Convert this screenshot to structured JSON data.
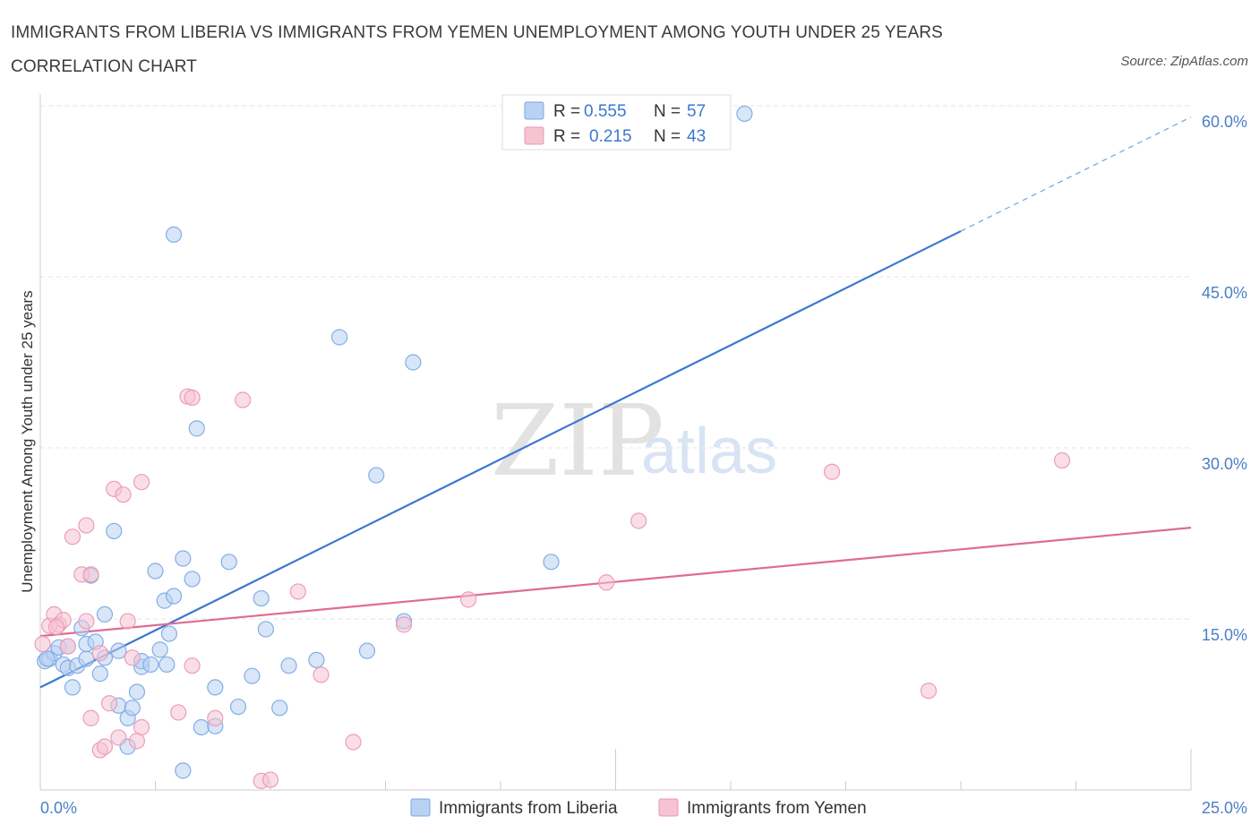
{
  "title": "IMMIGRANTS FROM LIBERIA VS IMMIGRANTS FROM YEMEN UNEMPLOYMENT AMONG YOUTH UNDER 25 YEARS CORRELATION CHART",
  "source": "Source: ZipAtlas.com",
  "watermark": {
    "zip": "ZIP",
    "atlas": "atlas"
  },
  "colors": {
    "liberia": "#3b78d0",
    "liberia_fill": "#b9d2f3",
    "yemen": "#e06b93",
    "yemen_fill": "#f6c3d3"
  },
  "legend": {
    "rows": [
      {
        "r_label": "R =",
        "r_value": "0.555",
        "n_label": "N =",
        "n_value": "57"
      },
      {
        "r_label": "R =",
        "r_value": "0.215",
        "n_label": "N =",
        "n_value": "43"
      }
    ]
  },
  "chart_data": {
    "type": "scatter",
    "xlabel": "",
    "ylabel": "Unemployment Among Youth under 25 years",
    "xlim": [
      0,
      25
    ],
    "ylim": [
      0,
      60
    ],
    "x_tick_labels": [
      "0.0%",
      "25.0%"
    ],
    "y_ticks": [
      15,
      30,
      45,
      60
    ],
    "y_tick_labels": [
      "15.0%",
      "30.0%",
      "45.0%",
      "60.0%"
    ],
    "grid": true,
    "legend_position": "bottom-center",
    "series": [
      {
        "name": "Immigrants from Liberia",
        "color": "#3b78d0",
        "R": 0.555,
        "N": 57,
        "trend": {
          "x": [
            0.0,
            20.0
          ],
          "y": [
            9.0,
            49.0
          ],
          "dashed_to": [
            25.0,
            59.0
          ]
        },
        "points": [
          [
            0.1,
            11.3
          ],
          [
            0.2,
            11.5
          ],
          [
            0.3,
            12.0
          ],
          [
            0.4,
            12.5
          ],
          [
            0.5,
            11.0
          ],
          [
            0.6,
            12.6
          ],
          [
            0.6,
            10.7
          ],
          [
            0.7,
            9.0
          ],
          [
            0.8,
            10.9
          ],
          [
            0.9,
            14.2
          ],
          [
            1.0,
            11.5
          ],
          [
            1.0,
            12.8
          ],
          [
            1.1,
            18.8
          ],
          [
            1.2,
            13.0
          ],
          [
            1.3,
            10.2
          ],
          [
            1.4,
            15.4
          ],
          [
            1.4,
            11.6
          ],
          [
            1.6,
            22.7
          ],
          [
            1.7,
            12.2
          ],
          [
            1.7,
            7.4
          ],
          [
            1.9,
            3.8
          ],
          [
            1.9,
            6.3
          ],
          [
            2.0,
            7.2
          ],
          [
            2.1,
            8.6
          ],
          [
            2.2,
            10.8
          ],
          [
            2.2,
            11.3
          ],
          [
            2.4,
            11.0
          ],
          [
            2.5,
            19.2
          ],
          [
            2.6,
            12.3
          ],
          [
            2.7,
            16.6
          ],
          [
            2.8,
            13.7
          ],
          [
            2.9,
            48.7
          ],
          [
            2.9,
            17.0
          ],
          [
            3.1,
            1.7
          ],
          [
            3.1,
            20.3
          ],
          [
            3.3,
            18.5
          ],
          [
            3.4,
            31.7
          ],
          [
            3.5,
            5.5
          ],
          [
            3.8,
            5.6
          ],
          [
            3.8,
            9.0
          ],
          [
            4.1,
            20.0
          ],
          [
            4.3,
            7.3
          ],
          [
            4.6,
            10.0
          ],
          [
            4.8,
            16.8
          ],
          [
            4.9,
            14.1
          ],
          [
            5.2,
            7.2
          ],
          [
            5.4,
            10.9
          ],
          [
            6.0,
            11.4
          ],
          [
            6.5,
            39.7
          ],
          [
            7.1,
            12.2
          ],
          [
            7.3,
            27.6
          ],
          [
            7.9,
            14.8
          ],
          [
            8.1,
            37.5
          ],
          [
            11.1,
            20.0
          ],
          [
            15.3,
            59.3
          ],
          [
            0.15,
            11.5
          ],
          [
            2.75,
            11.0
          ]
        ]
      },
      {
        "name": "Immigrants from Yemen",
        "color": "#e06b93",
        "R": 0.215,
        "N": 43,
        "trend": {
          "x": [
            0.0,
            25.0
          ],
          "y": [
            13.5,
            23.0
          ]
        },
        "points": [
          [
            0.05,
            12.8
          ],
          [
            0.2,
            14.4
          ],
          [
            0.3,
            15.4
          ],
          [
            0.4,
            14.5
          ],
          [
            0.5,
            14.9
          ],
          [
            0.6,
            12.6
          ],
          [
            0.7,
            22.2
          ],
          [
            0.9,
            18.9
          ],
          [
            1.0,
            23.2
          ],
          [
            1.0,
            14.8
          ],
          [
            1.1,
            18.9
          ],
          [
            1.1,
            6.3
          ],
          [
            1.3,
            12.0
          ],
          [
            1.3,
            3.5
          ],
          [
            1.4,
            3.8
          ],
          [
            1.5,
            7.6
          ],
          [
            1.6,
            26.4
          ],
          [
            1.7,
            4.6
          ],
          [
            1.8,
            25.9
          ],
          [
            1.9,
            14.8
          ],
          [
            2.0,
            11.6
          ],
          [
            2.1,
            4.3
          ],
          [
            2.2,
            27.0
          ],
          [
            2.2,
            5.5
          ],
          [
            3.0,
            6.8
          ],
          [
            3.2,
            34.5
          ],
          [
            3.3,
            34.4
          ],
          [
            3.3,
            10.9
          ],
          [
            3.8,
            6.3
          ],
          [
            4.4,
            34.2
          ],
          [
            4.8,
            0.8
          ],
          [
            5.0,
            0.9
          ],
          [
            5.6,
            17.4
          ],
          [
            6.1,
            10.1
          ],
          [
            6.8,
            4.2
          ],
          [
            7.9,
            14.5
          ],
          [
            9.3,
            16.7
          ],
          [
            12.3,
            18.2
          ],
          [
            13.0,
            23.6
          ],
          [
            17.2,
            27.9
          ],
          [
            19.3,
            8.7
          ],
          [
            22.2,
            28.9
          ],
          [
            0.35,
            14.3
          ]
        ]
      }
    ]
  }
}
